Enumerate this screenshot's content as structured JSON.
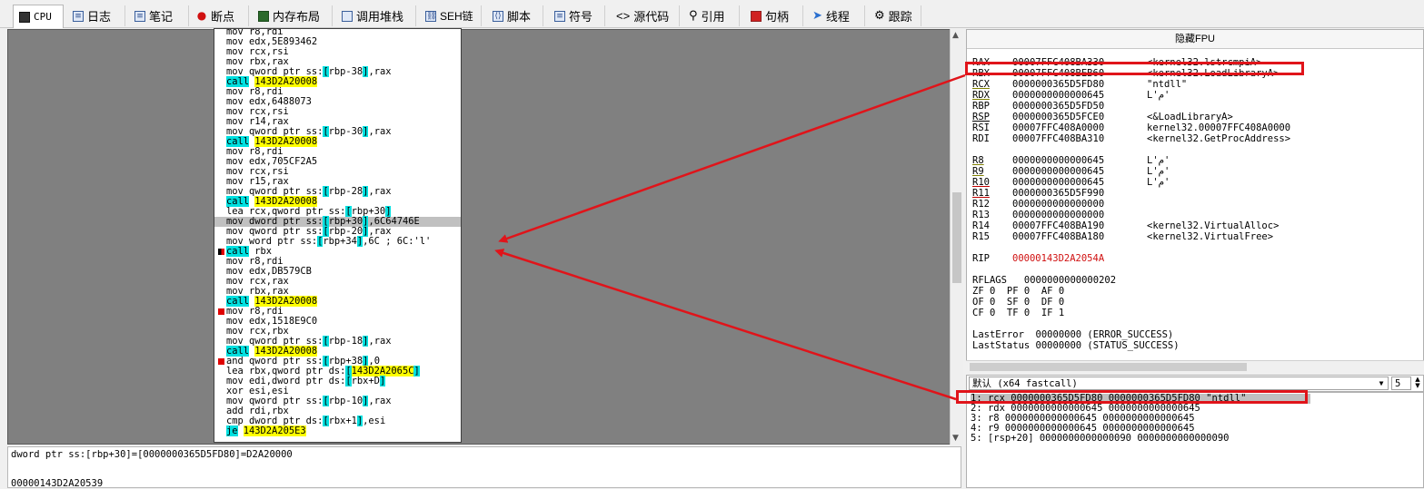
{
  "tabs": [
    {
      "label": "CPU",
      "icon": "cpu-icon"
    },
    {
      "label": "日志",
      "icon": "log-icon"
    },
    {
      "label": "笔记",
      "icon": "notes-icon"
    },
    {
      "label": "断点",
      "icon": "breakpoint-icon"
    },
    {
      "label": "内存布局",
      "icon": "memory-map-icon"
    },
    {
      "label": "调用堆栈",
      "icon": "call-stack-icon"
    },
    {
      "label": "SEH链",
      "icon": "seh-chain-icon"
    },
    {
      "label": "脚本",
      "icon": "script-icon"
    },
    {
      "label": "符号",
      "icon": "symbols-icon"
    },
    {
      "label": "源代码",
      "icon": "source-icon"
    },
    {
      "label": "引用",
      "icon": "references-icon"
    },
    {
      "label": "句柄",
      "icon": "handles-icon"
    },
    {
      "label": "线程",
      "icon": "threads-icon"
    },
    {
      "label": "跟踪",
      "icon": "trace-icon"
    }
  ],
  "disasm": [
    {
      "text": "mov r8,rdi"
    },
    {
      "text": "mov edx,5E893462"
    },
    {
      "text": "mov rcx,rsi"
    },
    {
      "text": "mov rbx,rax"
    },
    {
      "text": "mov qword ptr ss:[rbp-38],rax"
    },
    {
      "text": "call 143D2A20008"
    },
    {
      "text": "mov r8,rdi"
    },
    {
      "text": "mov edx,6488073"
    },
    {
      "text": "mov rcx,rsi"
    },
    {
      "text": "mov r14,rax"
    },
    {
      "text": "mov qword ptr ss:[rbp-30],rax"
    },
    {
      "text": "call 143D2A20008"
    },
    {
      "text": "mov r8,rdi"
    },
    {
      "text": "mov edx,705CF2A5"
    },
    {
      "text": "mov rcx,rsi"
    },
    {
      "text": "mov r15,rax"
    },
    {
      "text": "mov qword ptr ss:[rbp-28],rax"
    },
    {
      "text": "call 143D2A20008"
    },
    {
      "text": "lea rcx,qword ptr ss:[rbp+30]"
    },
    {
      "text": "mov dword ptr ss:[rbp+30],6C64746E"
    },
    {
      "text": "mov qword ptr ss:[rbp-20],rax"
    },
    {
      "text": "mov word ptr ss:[rbp+34],6C ; 6C:'l'"
    },
    {
      "text": "call rbx"
    },
    {
      "text": "mov r8,rdi"
    },
    {
      "text": "mov edx,DB579CB"
    },
    {
      "text": "mov rcx,rax"
    },
    {
      "text": "mov rbx,rax"
    },
    {
      "text": "call 143D2A20008"
    },
    {
      "text": "mov r8,rdi"
    },
    {
      "text": "mov edx,1518E9C0"
    },
    {
      "text": "mov rcx,rbx"
    },
    {
      "text": "mov qword ptr ss:[rbp-18],rax"
    },
    {
      "text": "call 143D2A20008"
    },
    {
      "text": "and qword ptr ss:[rbp+38],0"
    },
    {
      "text": "lea rbx,qword ptr ds:[143D2A2065C]"
    },
    {
      "text": "mov edi,dword ptr ds:[rbx+D]"
    },
    {
      "text": "xor esi,esi"
    },
    {
      "text": "mov qword ptr ss:[rbp-10],rax"
    },
    {
      "text": "add rdi,rbx"
    },
    {
      "text": "cmp dword ptr ds:[rbx+1],esi"
    },
    {
      "text": "je 143D2A205E3"
    }
  ],
  "info": {
    "line1": "dword ptr ss:[rbp+30]=[0000000365D5FD80]=D2A20000",
    "line2": "00000143D2A20539"
  },
  "registers": {
    "header": "隐藏FPU",
    "rows": [
      {
        "name": "RAX",
        "value": "00007FFC408BA330",
        "comment": "<kernel32.lstrcmpiA>"
      },
      {
        "name": "RBX",
        "value": "00007FFC408BEB60",
        "comment": "<kernel32.LoadLibraryA>"
      },
      {
        "name": "RCX",
        "value": "0000000365D5FD80",
        "comment": "\"ntdll\""
      },
      {
        "name": "RDX",
        "value": "0000000000000645",
        "comment": "L'م'"
      },
      {
        "name": "RBP",
        "value": "0000000365D5FD50",
        "comment": ""
      },
      {
        "name": "RSP",
        "value": "0000000365D5FCE0",
        "comment": "<&LoadLibraryA>"
      },
      {
        "name": "RSI",
        "value": "00007FFC408A0000",
        "comment": "kernel32.00007FFC408A0000"
      },
      {
        "name": "RDI",
        "value": "00007FFC408BA310",
        "comment": "<kernel32.GetProcAddress>"
      },
      {
        "name": "R8",
        "value": "0000000000000645",
        "comment": "L'م'"
      },
      {
        "name": "R9",
        "value": "0000000000000645",
        "comment": "L'م'"
      },
      {
        "name": "R10",
        "value": "0000000000000645",
        "comment": "L'م'"
      },
      {
        "name": "R11",
        "value": "0000000365D5F990",
        "comment": ""
      },
      {
        "name": "R12",
        "value": "0000000000000000",
        "comment": ""
      },
      {
        "name": "R13",
        "value": "0000000000000000",
        "comment": ""
      },
      {
        "name": "R14",
        "value": "00007FFC408BA190",
        "comment": "<kernel32.VirtualAlloc>"
      },
      {
        "name": "R15",
        "value": "00007FFC408BA180",
        "comment": "<kernel32.VirtualFree>"
      }
    ],
    "rip_name": "RIP",
    "rip_value": "00000143D2A2054A",
    "rflags": "RFLAGS   0000000000000202",
    "flags1": "ZF 0  PF 0  AF 0",
    "flags2": "OF 0  SF 0  DF 0",
    "flags3": "CF 0  TF 0  IF 1",
    "lasterror": "LastError  00000000 (ERROR_SUCCESS)",
    "laststatus": "LastStatus 00000000 (STATUS_SUCCESS)"
  },
  "callconv": {
    "selected": "默认 (x64 fastcall)",
    "count": "5"
  },
  "args": [
    "1: rcx 0000000365D5FD80 0000000365D5FD80 \"ntdll\"",
    "2: rdx 0000000000000645 0000000000000645",
    "3: r8 0000000000000645 0000000000000645",
    "4: r9 0000000000000645 0000000000000645",
    "5: [rsp+20] 0000000000000090 0000000000000090"
  ],
  "colors": {
    "highlight_cyan": "#00e0e0",
    "highlight_yellow": "#ffff00",
    "annotation_red": "#e0141a",
    "rip_red": "#d01010"
  }
}
